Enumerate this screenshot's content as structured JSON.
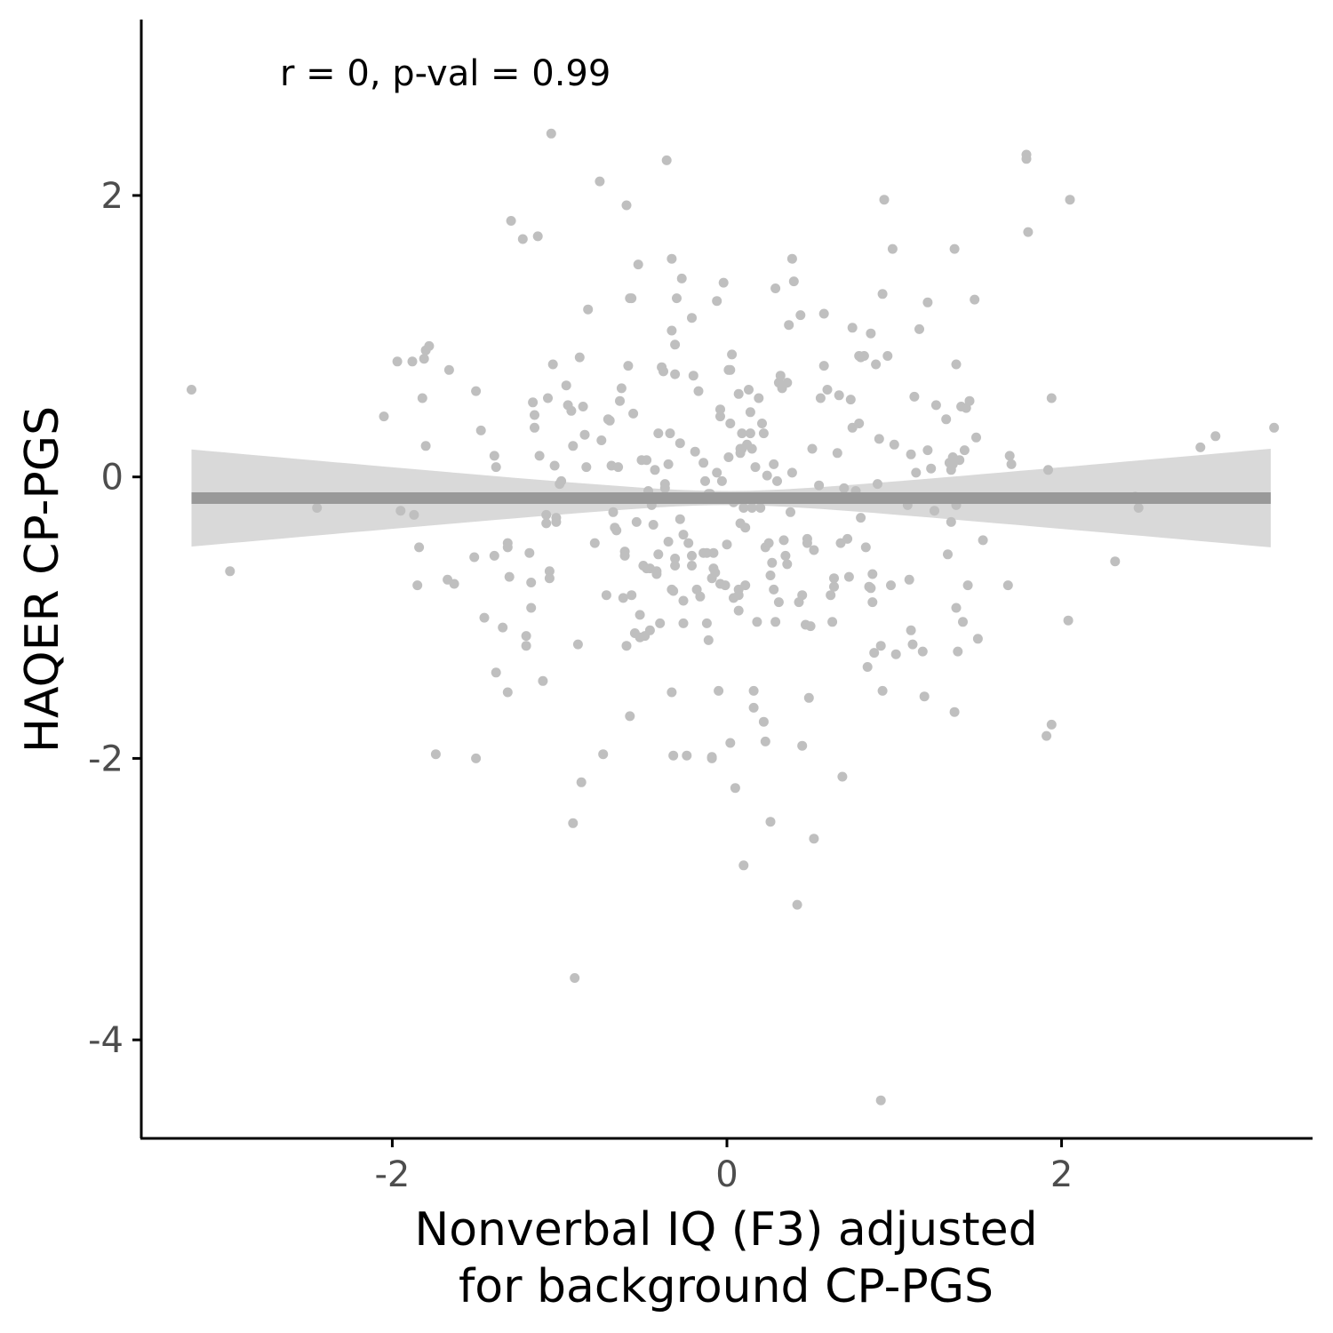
{
  "chart_data": {
    "type": "scatter",
    "annotation": "r = 0, p-val = 0.99",
    "xlabel_lines": [
      "Nonverbal IQ (F3) adjusted",
      "for background CP-PGS"
    ],
    "ylabel": "HAQER CP-PGS",
    "xlim": [
      -3.5,
      3.5
    ],
    "ylim": [
      -4.7,
      3.25
    ],
    "x_ticks": [
      -2,
      0,
      2
    ],
    "x_tick_labels": [
      "-2",
      "0",
      "2"
    ],
    "y_ticks": [
      -4,
      -2,
      0,
      2
    ],
    "y_tick_labels": [
      "-4",
      "-2",
      "0",
      "2"
    ],
    "grid": false,
    "legend": "none",
    "colors": {
      "points": "#bfbfbf",
      "fit_line": "#999999",
      "band": "#d9d9d9",
      "axis": "#000000",
      "tick_text": "#4d4d4d"
    },
    "fit": {
      "intercept": -0.15,
      "slope": 0.0,
      "x_range": [
        -3.2,
        3.25
      ],
      "band_halfwidth_at_ends": 0.35,
      "band_halfwidth_at_center": 0.05,
      "band_center_x": 0.0
    },
    "points": [
      [
        -3.2,
        0.62
      ],
      [
        -2.97,
        -0.67
      ],
      [
        -2.45,
        -0.22
      ],
      [
        -2.05,
        0.43
      ],
      [
        -1.97,
        0.82
      ],
      [
        -1.95,
        -0.24
      ],
      [
        -1.88,
        0.82
      ],
      [
        -1.87,
        -0.27
      ],
      [
        -1.85,
        -0.77
      ],
      [
        -1.84,
        -0.5
      ],
      [
        -1.82,
        0.56
      ],
      [
        -1.81,
        0.84
      ],
      [
        -1.8,
        0.22
      ],
      [
        -1.8,
        0.9
      ],
      [
        -1.78,
        0.93
      ],
      [
        -1.74,
        -1.97
      ],
      [
        -1.67,
        -0.73
      ],
      [
        -1.66,
        0.76
      ],
      [
        -1.63,
        -0.76
      ],
      [
        -1.51,
        -0.57
      ],
      [
        -1.5,
        -2.0
      ],
      [
        -1.5,
        0.61
      ],
      [
        -1.47,
        0.33
      ],
      [
        -1.45,
        -1.0
      ],
      [
        -1.39,
        -0.56
      ],
      [
        -1.39,
        0.15
      ],
      [
        -1.38,
        0.07
      ],
      [
        -1.38,
        -1.39
      ],
      [
        -1.34,
        -1.07
      ],
      [
        -1.31,
        -0.47
      ],
      [
        -1.31,
        -0.5
      ],
      [
        -1.31,
        -1.53
      ],
      [
        -1.3,
        -0.71
      ],
      [
        -1.29,
        1.82
      ],
      [
        -1.22,
        1.69
      ],
      [
        -1.2,
        -1.13
      ],
      [
        -1.2,
        -1.2
      ],
      [
        -1.18,
        -0.54
      ],
      [
        -1.17,
        -0.75
      ],
      [
        -1.17,
        -0.93
      ],
      [
        -1.16,
        0.53
      ],
      [
        -1.15,
        0.44
      ],
      [
        -1.15,
        0.35
      ],
      [
        -1.13,
        1.71
      ],
      [
        -1.12,
        0.15
      ],
      [
        -1.1,
        -1.45
      ],
      [
        -1.08,
        -0.27
      ],
      [
        -1.08,
        -0.33
      ],
      [
        -1.07,
        0.56
      ],
      [
        -1.06,
        -0.67
      ],
      [
        -1.06,
        -0.72
      ],
      [
        -1.05,
        2.44
      ],
      [
        -1.04,
        0.8
      ],
      [
        -1.03,
        0.08
      ],
      [
        -1.02,
        -0.29
      ],
      [
        -1.02,
        -0.32
      ],
      [
        -1.0,
        -0.05
      ],
      [
        -0.99,
        -0.03
      ],
      [
        -0.96,
        0.65
      ],
      [
        -0.95,
        0.51
      ],
      [
        -0.93,
        0.47
      ],
      [
        -0.92,
        -2.46
      ],
      [
        -0.92,
        0.22
      ],
      [
        -0.91,
        -3.56
      ],
      [
        -0.89,
        -1.19
      ],
      [
        -0.88,
        0.85
      ],
      [
        -0.87,
        -2.17
      ],
      [
        -0.86,
        0.5
      ],
      [
        -0.85,
        0.3
      ],
      [
        -0.84,
        0.07
      ],
      [
        -0.83,
        1.19
      ],
      [
        -0.79,
        -0.47
      ],
      [
        -0.76,
        2.1
      ],
      [
        -0.75,
        0.26
      ],
      [
        -0.74,
        -1.97
      ],
      [
        -0.72,
        -0.84
      ],
      [
        -0.71,
        0.41
      ],
      [
        -0.7,
        0.4
      ],
      [
        -0.69,
        0.08
      ],
      [
        -0.68,
        -0.25
      ],
      [
        -0.67,
        -0.36
      ],
      [
        -0.66,
        -0.38
      ],
      [
        -0.65,
        0.07
      ],
      [
        -0.64,
        0.54
      ],
      [
        -0.63,
        0.63
      ],
      [
        -0.62,
        -0.86
      ],
      [
        -0.61,
        -0.53
      ],
      [
        -0.61,
        -0.56
      ],
      [
        -0.6,
        1.93
      ],
      [
        -0.6,
        -1.2
      ],
      [
        -0.59,
        0.79
      ],
      [
        -0.58,
        -1.7
      ],
      [
        -0.58,
        1.27
      ],
      [
        -0.57,
        -0.84
      ],
      [
        -0.57,
        1.27
      ],
      [
        -0.56,
        0.45
      ],
      [
        -0.55,
        -1.11
      ],
      [
        -0.54,
        -0.32
      ],
      [
        -0.53,
        1.51
      ],
      [
        -0.52,
        -0.98
      ],
      [
        -0.52,
        -1.14
      ],
      [
        -0.51,
        0.12
      ],
      [
        -0.5,
        -0.63
      ],
      [
        -0.49,
        -1.13
      ],
      [
        -0.48,
        0.12
      ],
      [
        -0.48,
        -0.65
      ],
      [
        -0.47,
        -0.1
      ],
      [
        -0.46,
        -0.65
      ],
      [
        -0.46,
        -1.09
      ],
      [
        -0.45,
        -0.2
      ],
      [
        -0.44,
        -0.34
      ],
      [
        -0.43,
        0.05
      ],
      [
        -0.42,
        -0.67
      ],
      [
        -0.42,
        -0.69
      ],
      [
        -0.41,
        -0.55
      ],
      [
        -0.41,
        0.31
      ],
      [
        -0.4,
        -1.04
      ],
      [
        -0.39,
        0.78
      ],
      [
        -0.38,
        0.75
      ],
      [
        -0.37,
        -0.05
      ],
      [
        -0.37,
        -0.08
      ],
      [
        -0.36,
        2.25
      ],
      [
        -0.35,
        0.09
      ],
      [
        -0.35,
        -0.46
      ],
      [
        -0.34,
        0.31
      ],
      [
        -0.33,
        1.55
      ],
      [
        -0.33,
        -0.8
      ],
      [
        -0.33,
        -1.53
      ],
      [
        -0.33,
        1.04
      ],
      [
        -0.32,
        -0.81
      ],
      [
        -0.32,
        -1.98
      ],
      [
        -0.31,
        -0.63
      ],
      [
        -0.31,
        0.73
      ],
      [
        -0.31,
        -0.58
      ],
      [
        -0.31,
        0.94
      ],
      [
        -0.3,
        1.27
      ],
      [
        -0.28,
        -0.3
      ],
      [
        -0.28,
        0.24
      ],
      [
        -0.27,
        1.41
      ],
      [
        -0.26,
        -1.04
      ],
      [
        -0.26,
        -0.41
      ],
      [
        -0.26,
        -0.88
      ],
      [
        -0.24,
        -1.98
      ],
      [
        -0.23,
        -0.47
      ],
      [
        -0.21,
        -0.63
      ],
      [
        -0.21,
        -0.56
      ],
      [
        -0.21,
        1.13
      ],
      [
        -0.2,
        0.72
      ],
      [
        -0.19,
        0.18
      ],
      [
        -0.18,
        -0.8
      ],
      [
        -0.17,
        0.61
      ],
      [
        -0.16,
        -0.85
      ],
      [
        -0.14,
        -0.54
      ],
      [
        -0.14,
        0.1
      ],
      [
        -0.13,
        -0.03
      ],
      [
        -0.12,
        -0.54
      ],
      [
        -0.12,
        -1.04
      ],
      [
        -0.11,
        -0.12
      ],
      [
        -0.11,
        -1.16
      ],
      [
        -0.1,
        -0.12
      ],
      [
        -0.09,
        -2.0
      ],
      [
        -0.09,
        -1.99
      ],
      [
        -0.09,
        -0.72
      ],
      [
        -0.08,
        -0.54
      ],
      [
        -0.08,
        -0.65
      ],
      [
        -0.07,
        -0.68
      ],
      [
        -0.06,
        1.25
      ],
      [
        -0.06,
        0.03
      ],
      [
        -0.05,
        -1.52
      ],
      [
        -0.04,
        -0.76
      ],
      [
        -0.04,
        0.43
      ],
      [
        -0.04,
        0.48
      ],
      [
        -0.03,
        -0.03
      ],
      [
        -0.02,
        1.38
      ],
      [
        -0.01,
        -0.77
      ],
      [
        0.0,
        -0.48
      ],
      [
        0.01,
        0.76
      ],
      [
        0.01,
        0.14
      ],
      [
        0.02,
        0.76
      ],
      [
        0.02,
        -1.89
      ],
      [
        0.02,
        0.38
      ],
      [
        0.03,
        0.87
      ],
      [
        0.04,
        -0.18
      ],
      [
        0.04,
        -0.86
      ],
      [
        0.05,
        -2.21
      ],
      [
        0.07,
        -0.8
      ],
      [
        0.07,
        0.59
      ],
      [
        0.07,
        -0.84
      ],
      [
        0.07,
        -0.95
      ],
      [
        0.08,
        0.17
      ],
      [
        0.08,
        -0.33
      ],
      [
        0.08,
        0.2
      ],
      [
        0.09,
        0.2
      ],
      [
        0.09,
        0.31
      ],
      [
        0.1,
        -2.76
      ],
      [
        0.1,
        -0.22
      ],
      [
        0.11,
        -0.36
      ],
      [
        0.11,
        -0.77
      ],
      [
        0.12,
        0.23
      ],
      [
        0.13,
        0.62
      ],
      [
        0.14,
        0.46
      ],
      [
        0.14,
        0.31
      ],
      [
        0.15,
        0.2
      ],
      [
        0.15,
        -0.22
      ],
      [
        0.16,
        -1.64
      ],
      [
        0.16,
        -1.52
      ],
      [
        0.17,
        0.07
      ],
      [
        0.18,
        -1.03
      ],
      [
        0.19,
        0.56
      ],
      [
        0.2,
        -0.22
      ],
      [
        0.21,
        0.38
      ],
      [
        0.22,
        -1.74
      ],
      [
        0.22,
        0.31
      ],
      [
        0.23,
        -0.5
      ],
      [
        0.23,
        -1.88
      ],
      [
        0.24,
        0.01
      ],
      [
        0.25,
        -0.47
      ],
      [
        0.26,
        -0.7
      ],
      [
        0.26,
        -2.45
      ],
      [
        0.27,
        -0.61
      ],
      [
        0.28,
        0.09
      ],
      [
        0.28,
        -0.8
      ],
      [
        0.29,
        -1.03
      ],
      [
        0.29,
        1.34
      ],
      [
        0.3,
        -0.03
      ],
      [
        0.31,
        -0.89
      ],
      [
        0.31,
        0.67
      ],
      [
        0.32,
        0.72
      ],
      [
        0.33,
        0.63
      ],
      [
        0.34,
        -0.45
      ],
      [
        0.35,
        -0.56
      ],
      [
        0.36,
        -0.62
      ],
      [
        0.36,
        0.67
      ],
      [
        0.37,
        1.08
      ],
      [
        0.38,
        -0.25
      ],
      [
        0.39,
        1.55
      ],
      [
        0.39,
        0.03
      ],
      [
        0.4,
        1.39
      ],
      [
        0.42,
        -3.04
      ],
      [
        0.43,
        -0.89
      ],
      [
        0.44,
        1.15
      ],
      [
        0.45,
        -1.91
      ],
      [
        0.45,
        -0.84
      ],
      [
        0.47,
        -1.05
      ],
      [
        0.48,
        -0.44
      ],
      [
        0.48,
        -0.47
      ],
      [
        0.49,
        -1.57
      ],
      [
        0.5,
        -1.06
      ],
      [
        0.51,
        0.2
      ],
      [
        0.52,
        -0.52
      ],
      [
        0.52,
        -2.57
      ],
      [
        0.55,
        -0.06
      ],
      [
        0.56,
        0.56
      ],
      [
        0.58,
        0.79
      ],
      [
        0.58,
        1.16
      ],
      [
        0.6,
        0.62
      ],
      [
        0.62,
        -0.84
      ],
      [
        0.63,
        -1.03
      ],
      [
        0.64,
        -0.78
      ],
      [
        0.64,
        -0.72
      ],
      [
        0.66,
        0.17
      ],
      [
        0.67,
        0.58
      ],
      [
        0.68,
        -0.47
      ],
      [
        0.69,
        -2.13
      ],
      [
        0.7,
        -0.08
      ],
      [
        0.72,
        -0.44
      ],
      [
        0.73,
        -0.71
      ],
      [
        0.74,
        0.55
      ],
      [
        0.75,
        1.06
      ],
      [
        0.75,
        0.35
      ],
      [
        0.77,
        -0.1
      ],
      [
        0.79,
        0.38
      ],
      [
        0.79,
        0.86
      ],
      [
        0.8,
        -0.29
      ],
      [
        0.8,
        0.85
      ],
      [
        0.82,
        0.86
      ],
      [
        0.83,
        -0.5
      ],
      [
        0.84,
        -1.35
      ],
      [
        0.85,
        -0.78
      ],
      [
        0.86,
        -0.79
      ],
      [
        0.86,
        1.02
      ],
      [
        0.87,
        -0.89
      ],
      [
        0.87,
        -0.69
      ],
      [
        0.88,
        -1.25
      ],
      [
        0.89,
        0.8
      ],
      [
        0.9,
        -0.05
      ],
      [
        0.91,
        0.27
      ],
      [
        0.92,
        -4.43
      ],
      [
        0.92,
        -1.2
      ],
      [
        0.93,
        -1.52
      ],
      [
        0.93,
        1.3
      ],
      [
        0.94,
        1.97
      ],
      [
        0.96,
        0.86
      ],
      [
        0.98,
        -0.77
      ],
      [
        0.99,
        1.62
      ],
      [
        1.0,
        0.23
      ],
      [
        1.01,
        -1.26
      ],
      [
        1.08,
        -0.2
      ],
      [
        1.09,
        -0.73
      ],
      [
        1.1,
        -1.09
      ],
      [
        1.1,
        0.16
      ],
      [
        1.11,
        -1.19
      ],
      [
        1.12,
        0.57
      ],
      [
        1.13,
        0.03
      ],
      [
        1.15,
        1.05
      ],
      [
        1.17,
        -1.24
      ],
      [
        1.18,
        -1.56
      ],
      [
        1.2,
        1.24
      ],
      [
        1.2,
        0.19
      ],
      [
        1.22,
        0.06
      ],
      [
        1.24,
        -0.24
      ],
      [
        1.25,
        0.51
      ],
      [
        1.31,
        0.41
      ],
      [
        1.32,
        -0.55
      ],
      [
        1.33,
        0.1
      ],
      [
        1.34,
        -0.32
      ],
      [
        1.34,
        0.05
      ],
      [
        1.35,
        0.14
      ],
      [
        1.35,
        0.09
      ],
      [
        1.36,
        1.62
      ],
      [
        1.36,
        -1.67
      ],
      [
        1.37,
        -0.93
      ],
      [
        1.37,
        0.8
      ],
      [
        1.37,
        -0.2
      ],
      [
        1.38,
        -1.24
      ],
      [
        1.39,
        0.12
      ],
      [
        1.4,
        0.5
      ],
      [
        1.41,
        -1.03
      ],
      [
        1.42,
        0.19
      ],
      [
        1.43,
        0.49
      ],
      [
        1.44,
        -0.77
      ],
      [
        1.45,
        0.54
      ],
      [
        1.48,
        1.26
      ],
      [
        1.49,
        0.28
      ],
      [
        1.5,
        -1.15
      ],
      [
        1.53,
        -0.45
      ],
      [
        1.68,
        -0.77
      ],
      [
        1.69,
        0.15
      ],
      [
        1.7,
        0.09
      ],
      [
        1.79,
        2.26
      ],
      [
        1.79,
        2.29
      ],
      [
        1.8,
        1.74
      ],
      [
        1.91,
        -1.84
      ],
      [
        1.92,
        0.05
      ],
      [
        1.94,
        -1.76
      ],
      [
        1.94,
        0.56
      ],
      [
        2.04,
        -1.02
      ],
      [
        2.05,
        1.97
      ],
      [
        2.32,
        -0.6
      ],
      [
        2.44,
        -0.14
      ],
      [
        2.46,
        -0.22
      ],
      [
        2.83,
        0.21
      ],
      [
        2.92,
        0.29
      ],
      [
        3.27,
        0.35
      ]
    ]
  }
}
